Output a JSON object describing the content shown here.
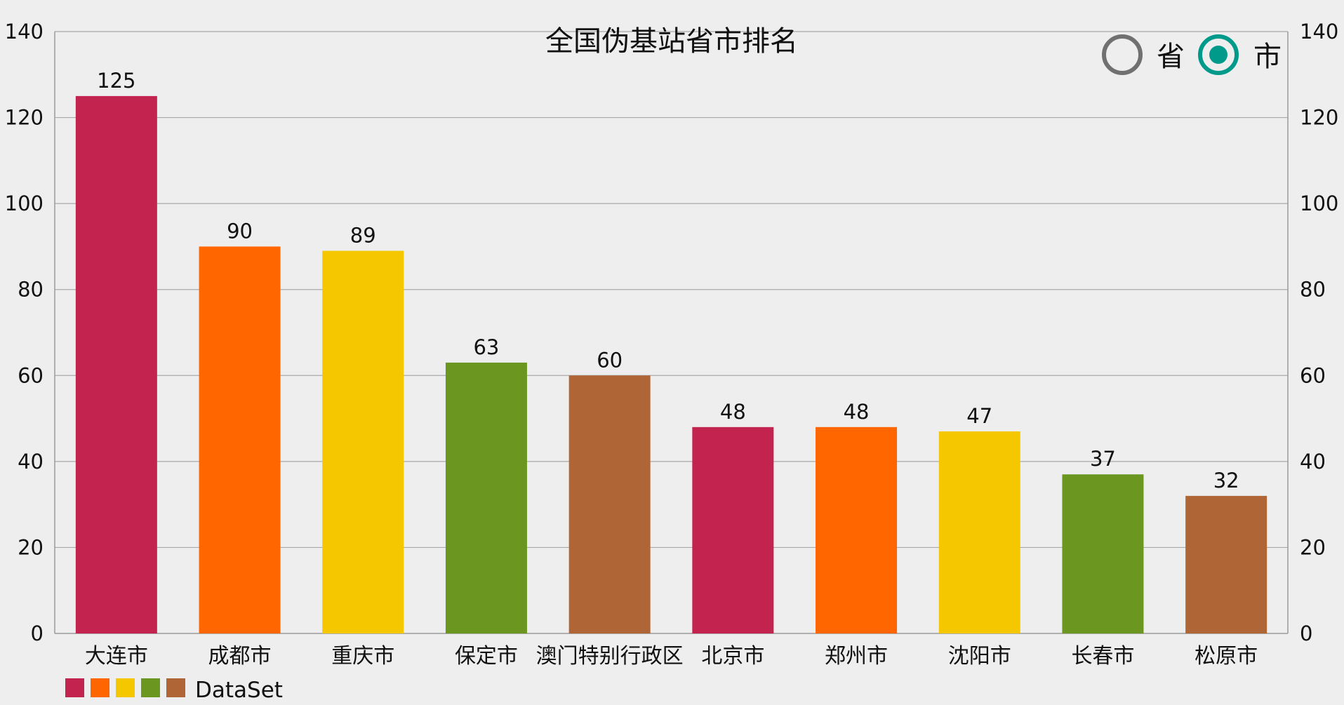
{
  "title": "全国伪基站省市排名",
  "radio": {
    "options": [
      {
        "label": "省",
        "selected": false
      },
      {
        "label": "市",
        "selected": true
      }
    ],
    "selected_color": "#009a8a",
    "unselected_color": "#707070"
  },
  "legend": {
    "label": "DataSet",
    "swatches": [
      "#c2244f",
      "#ff6600",
      "#f4c700",
      "#6b9620",
      "#b06536"
    ]
  },
  "chart_data": {
    "type": "bar",
    "categories": [
      "大连市",
      "成都市",
      "重庆市",
      "保定市",
      "澳门特别行政区",
      "北京市",
      "郑州市",
      "沈阳市",
      "长春市",
      "松原市"
    ],
    "series": [
      {
        "name": "DataSet",
        "values": [
          125,
          90,
          89,
          63,
          60,
          48,
          48,
          47,
          37,
          32
        ]
      }
    ],
    "colors": [
      "#c2244f",
      "#ff6600",
      "#f4c700",
      "#6b9620",
      "#b06536",
      "#c2244f",
      "#ff6600",
      "#f4c700",
      "#6b9620",
      "#b06536"
    ],
    "ylim": [
      0,
      140
    ],
    "yticks": [
      0,
      20,
      40,
      60,
      80,
      100,
      120,
      140
    ],
    "grid": true,
    "legend_position": "bottom-left",
    "xlabel": "",
    "ylabel": ""
  }
}
